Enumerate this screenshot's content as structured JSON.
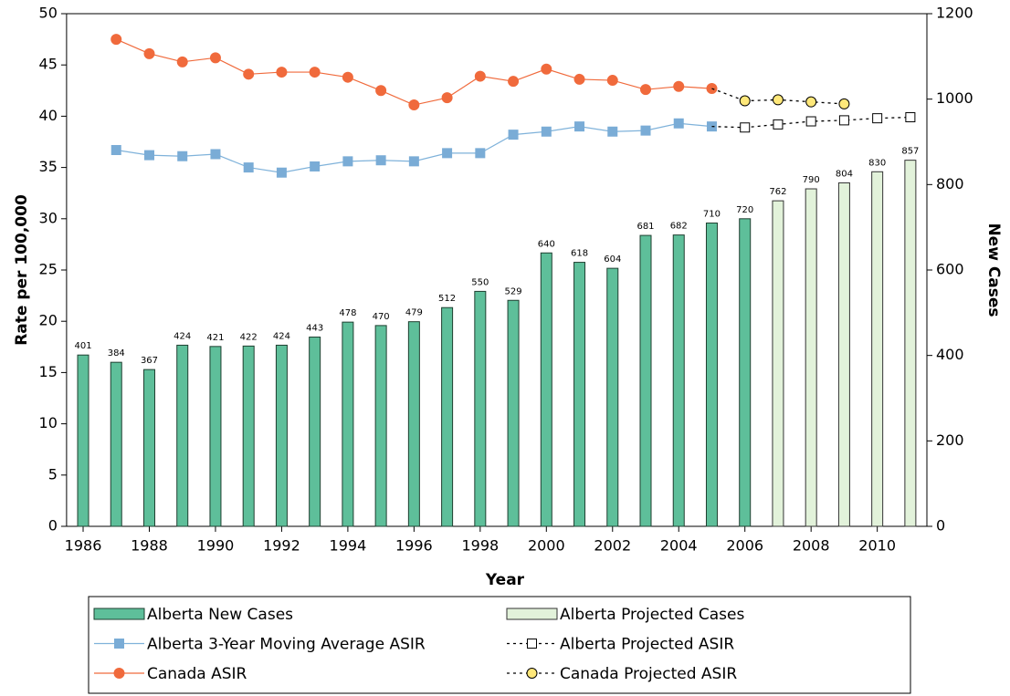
{
  "chart_data": {
    "type": "bar",
    "xlabel": "Year",
    "ylabel": "Rate per 100,000",
    "y2label": "New Cases",
    "x": [
      1986,
      1987,
      1988,
      1989,
      1990,
      1991,
      1992,
      1993,
      1994,
      1995,
      1996,
      1997,
      1998,
      1999,
      2000,
      2001,
      2002,
      2003,
      2004,
      2005,
      2006,
      2007,
      2008,
      2009,
      2010,
      2011
    ],
    "xlim": [
      1985.5,
      2011.5
    ],
    "xticks": [
      1986,
      1988,
      1990,
      1992,
      1994,
      1996,
      1998,
      2000,
      2002,
      2004,
      2006,
      2008,
      2010
    ],
    "ylim": [
      0,
      50
    ],
    "yticks": [
      0,
      5,
      10,
      15,
      20,
      25,
      30,
      35,
      40,
      45,
      50
    ],
    "y2lim": [
      0,
      1200
    ],
    "y2ticks": [
      0,
      200,
      400,
      600,
      800,
      1000,
      1200
    ],
    "series": [
      {
        "name": "Alberta New Cases",
        "type": "bar",
        "axis": "y2",
        "color": "#5ebf9a",
        "edge": "#1f3f30",
        "values": [
          401,
          384,
          367,
          424,
          421,
          422,
          424,
          443,
          478,
          470,
          479,
          512,
          550,
          529,
          640,
          618,
          604,
          681,
          682,
          710,
          720,
          null,
          null,
          null,
          null,
          null
        ]
      },
      {
        "name": "Alberta Projected Cases",
        "type": "bar",
        "axis": "y2",
        "color": "#e2f2da",
        "edge": "#333333",
        "values": [
          null,
          null,
          null,
          null,
          null,
          null,
          null,
          null,
          null,
          null,
          null,
          null,
          null,
          null,
          null,
          null,
          null,
          null,
          null,
          null,
          null,
          762,
          790,
          804,
          830,
          857
        ]
      },
      {
        "name": "Alberta 3-Year Moving Average ASIR",
        "type": "line",
        "color": "#7fb2da",
        "marker": "square",
        "marker_color": "#7aacd6",
        "dashed": false,
        "values": [
          null,
          36.7,
          36.2,
          36.1,
          36.3,
          35.0,
          34.5,
          35.1,
          35.6,
          35.7,
          35.6,
          36.4,
          36.4,
          38.2,
          38.5,
          39.0,
          38.5,
          38.6,
          39.3,
          39.0,
          null,
          null,
          null,
          null,
          null,
          null
        ]
      },
      {
        "name": "Alberta Projected ASIR",
        "type": "line",
        "color": "#000000",
        "marker": "square",
        "marker_color": "#ffffff",
        "dashed": true,
        "values": [
          null,
          null,
          null,
          null,
          null,
          null,
          null,
          null,
          null,
          null,
          null,
          null,
          null,
          null,
          null,
          null,
          null,
          null,
          null,
          null,
          38.9,
          39.2,
          39.5,
          39.6,
          39.8,
          39.9
        ]
      },
      {
        "name": "Canada ASIR",
        "type": "line",
        "color": "#f06a3c",
        "marker": "circle",
        "marker_color": "#f06a3c",
        "dashed": false,
        "values": [
          null,
          47.5,
          46.1,
          45.3,
          45.7,
          44.1,
          44.3,
          44.3,
          43.8,
          42.5,
          41.1,
          41.8,
          43.9,
          43.4,
          44.6,
          43.6,
          43.5,
          42.6,
          42.9,
          42.7,
          null,
          null,
          null,
          null,
          null,
          null
        ]
      },
      {
        "name": "Canada Projected ASIR",
        "type": "line",
        "color": "#000000",
        "marker": "circle",
        "marker_color": "#ffe87a",
        "dashed": true,
        "values": [
          null,
          null,
          null,
          null,
          null,
          null,
          null,
          null,
          null,
          null,
          null,
          null,
          null,
          null,
          null,
          null,
          null,
          null,
          null,
          null,
          41.5,
          41.6,
          41.4,
          41.2,
          null,
          null
        ]
      }
    ]
  }
}
